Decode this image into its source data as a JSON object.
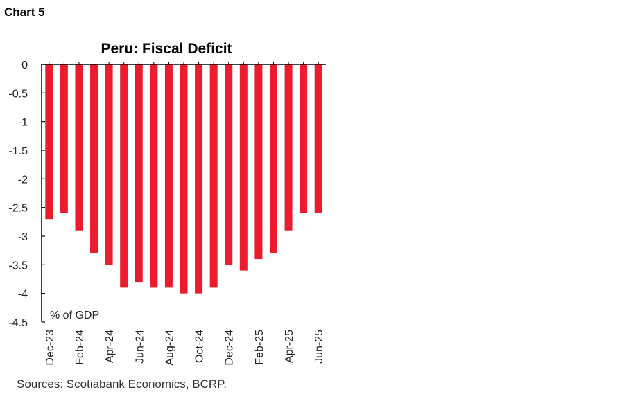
{
  "chart_label": "Chart 5",
  "source": "Sources: Scotiabank Economics, BCRP.",
  "chart_data": {
    "type": "bar",
    "title": "Peru: Fiscal Deficit",
    "ylabel": "% of GDP",
    "ylim": [
      -4.5,
      0
    ],
    "yticks": [
      0,
      -0.5,
      -1,
      -1.5,
      -2,
      -2.5,
      -3,
      -3.5,
      -4,
      -4.5
    ],
    "ytick_labels": [
      "0",
      "-0.5",
      "-1",
      "-1.5",
      "-2",
      "-2.5",
      "-3",
      "-3.5",
      "-4",
      "-4.5"
    ],
    "categories": [
      "Dec-23",
      "Jan-24",
      "Feb-24",
      "Mar-24",
      "Apr-24",
      "May-24",
      "Jun-24",
      "Jul-24",
      "Aug-24",
      "Sep-24",
      "Oct-24",
      "Nov-24",
      "Dec-24",
      "Jan-25",
      "Feb-25",
      "Mar-25",
      "Apr-25",
      "May-25",
      "Jun-25"
    ],
    "xtick_labels": [
      "Dec-23",
      "Feb-24",
      "Apr-24",
      "Jun-24",
      "Aug-24",
      "Oct-24",
      "Dec-24",
      "Feb-25",
      "Apr-25",
      "Jun-25"
    ],
    "values": [
      -2.7,
      -2.6,
      -2.9,
      -3.3,
      -3.5,
      -3.9,
      -3.8,
      -3.9,
      -3.9,
      -4.0,
      -4.0,
      -3.9,
      -3.5,
      -3.6,
      -3.4,
      -3.3,
      -2.9,
      -2.6,
      -2.6
    ],
    "color": "#ec1c2e",
    "grid": false
  }
}
